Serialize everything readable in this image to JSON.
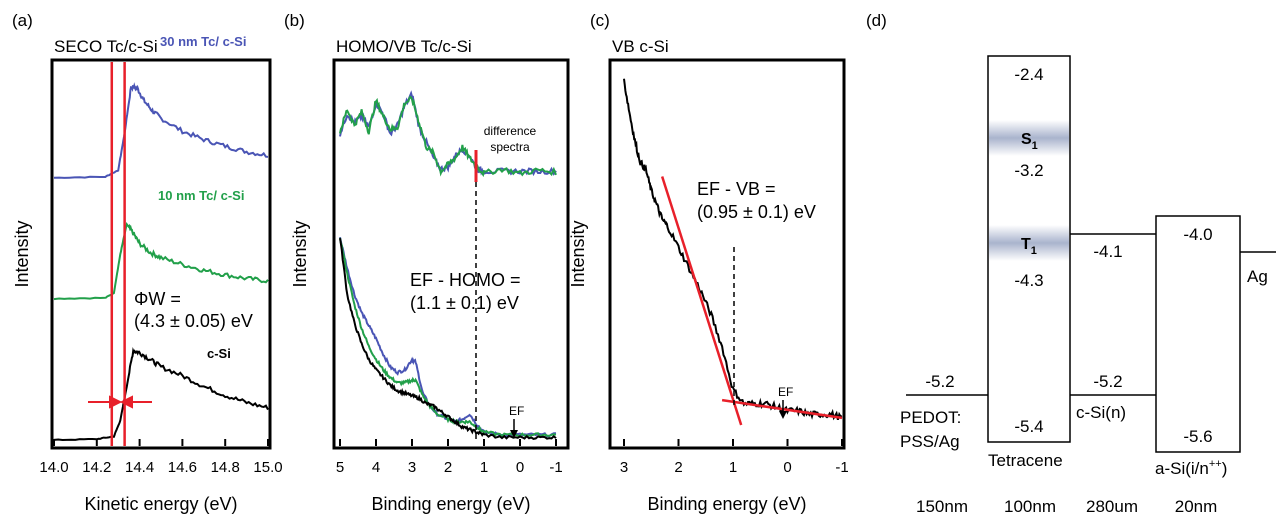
{
  "figure": {
    "colors": {
      "blue": "#4a55b5",
      "green": "#22a04a",
      "black": "#000000",
      "red": "#e8202a",
      "band": "#9aa6c4"
    }
  },
  "chart_data": [
    {
      "panel_label": "(a)",
      "type": "line",
      "title": "SECO Tc/c-Si",
      "xlabel": "Kinetic energy (eV)",
      "ylabel": "Intensity",
      "xlim": [
        14.0,
        15.0
      ],
      "xticks": [
        "14.0",
        "14.2",
        "14.4",
        "14.6",
        "14.8",
        "15.0"
      ],
      "series": [
        {
          "name": "30 nm Tc/ c-Si",
          "color": "#4a55b5",
          "offset": 0.7,
          "scale": 0.25,
          "x": [
            14.0,
            14.24,
            14.3,
            14.33,
            14.36,
            14.39,
            14.42,
            14.46,
            14.5,
            14.6,
            14.7,
            14.8,
            14.9,
            15.0
          ],
          "y": [
            0.02,
            0.03,
            0.1,
            0.5,
            1.0,
            0.98,
            0.85,
            0.74,
            0.66,
            0.52,
            0.43,
            0.36,
            0.3,
            0.26
          ]
        },
        {
          "name": "10 nm Tc/ c-Si",
          "color": "#22a04a",
          "offset": 0.38,
          "scale": 0.2,
          "x": [
            14.0,
            14.24,
            14.28,
            14.31,
            14.34,
            14.37,
            14.4,
            14.45,
            14.5,
            14.6,
            14.7,
            14.8,
            14.9,
            15.0
          ],
          "y": [
            0.0,
            0.01,
            0.08,
            0.6,
            1.0,
            0.88,
            0.74,
            0.62,
            0.55,
            0.46,
            0.38,
            0.32,
            0.27,
            0.24
          ]
        },
        {
          "name": "c-Si",
          "color": "#000000",
          "offset": 0.0,
          "scale": 0.24,
          "x": [
            14.0,
            14.2,
            14.28,
            14.31,
            14.34,
            14.37,
            14.4,
            14.45,
            14.5,
            14.6,
            14.7,
            14.8,
            14.9,
            15.0
          ],
          "y": [
            0.0,
            0.01,
            0.04,
            0.22,
            0.6,
            1.0,
            0.98,
            0.9,
            0.82,
            0.72,
            0.6,
            0.5,
            0.42,
            0.36
          ]
        }
      ],
      "vlines": [
        14.27,
        14.33
      ],
      "annotation_lines": [
        "ΦW =",
        "(4.3 ± 0.05) eV"
      ]
    },
    {
      "panel_label": "(b)",
      "type": "line",
      "title": "HOMO/VB Tc/c-Si",
      "xlabel": "Binding energy (eV)",
      "ylabel": "Intensity",
      "xlim": [
        5,
        -1
      ],
      "xticks": [
        "5",
        "4",
        "3",
        "2",
        "1",
        "0",
        "-1"
      ],
      "difference_label_lines": [
        "difference",
        "spectra"
      ],
      "series": [
        {
          "name": "blue",
          "color": "#4a55b5",
          "region": "lower",
          "x": [
            5.0,
            4.8,
            4.6,
            4.4,
            4.2,
            4.0,
            3.8,
            3.6,
            3.4,
            3.2,
            3.0,
            2.9,
            2.7,
            2.5,
            2.3,
            2.0,
            1.8,
            1.6,
            1.4,
            1.2,
            1.0,
            0.5,
            0.0,
            -0.5,
            -1.0
          ],
          "y": [
            0.78,
            0.66,
            0.56,
            0.49,
            0.44,
            0.39,
            0.33,
            0.28,
            0.26,
            0.27,
            0.31,
            0.3,
            0.18,
            0.13,
            0.1,
            0.08,
            0.07,
            0.08,
            0.1,
            0.06,
            0.03,
            0.02,
            0.02,
            0.02,
            0.02
          ]
        },
        {
          "name": "green",
          "color": "#22a04a",
          "region": "lower",
          "x": [
            5.0,
            4.8,
            4.6,
            4.4,
            4.2,
            4.0,
            3.8,
            3.6,
            3.4,
            3.2,
            3.0,
            2.9,
            2.7,
            2.5,
            2.3,
            2.0,
            1.8,
            1.6,
            1.4,
            1.2,
            1.0,
            0.5,
            0.0,
            -0.5,
            -1.0
          ],
          "y": [
            0.78,
            0.64,
            0.52,
            0.43,
            0.36,
            0.31,
            0.27,
            0.24,
            0.22,
            0.22,
            0.23,
            0.23,
            0.17,
            0.13,
            0.1,
            0.08,
            0.07,
            0.07,
            0.07,
            0.05,
            0.03,
            0.02,
            0.02,
            0.02,
            0.02
          ]
        },
        {
          "name": "black",
          "color": "#000000",
          "region": "lower",
          "x": [
            5.0,
            4.8,
            4.6,
            4.4,
            4.2,
            4.0,
            3.8,
            3.6,
            3.4,
            3.2,
            3.0,
            2.8,
            2.6,
            2.4,
            2.2,
            2.0,
            1.8,
            1.6,
            1.4,
            1.2,
            1.0,
            0.5,
            0.0,
            -0.5,
            -1.0
          ],
          "y": [
            0.78,
            0.56,
            0.45,
            0.37,
            0.31,
            0.27,
            0.24,
            0.21,
            0.19,
            0.18,
            0.17,
            0.16,
            0.14,
            0.13,
            0.11,
            0.09,
            0.07,
            0.05,
            0.04,
            0.03,
            0.02,
            0.01,
            0.01,
            0.01,
            0.01
          ]
        },
        {
          "name": "blue difference",
          "color": "#4a55b5",
          "region": "upper",
          "x": [
            5.0,
            4.8,
            4.6,
            4.4,
            4.2,
            4.0,
            3.8,
            3.6,
            3.4,
            3.2,
            3.0,
            2.8,
            2.6,
            2.4,
            2.2,
            2.0,
            1.8,
            1.6,
            1.4,
            1.2,
            1.0,
            0.5,
            0.0,
            -0.5,
            -1.0
          ],
          "y": [
            0.42,
            0.6,
            0.52,
            0.58,
            0.48,
            0.7,
            0.6,
            0.42,
            0.5,
            0.68,
            0.78,
            0.48,
            0.34,
            0.2,
            0.1,
            0.12,
            0.22,
            0.28,
            0.22,
            0.1,
            0.08,
            0.08,
            0.08,
            0.08,
            0.08
          ]
        },
        {
          "name": "green difference",
          "color": "#22a04a",
          "region": "upper",
          "x": [
            5.0,
            4.8,
            4.6,
            4.4,
            4.2,
            4.0,
            3.8,
            3.6,
            3.4,
            3.2,
            3.0,
            2.8,
            2.6,
            2.4,
            2.2,
            2.0,
            1.8,
            1.6,
            1.4,
            1.2,
            1.0,
            0.5,
            0.0,
            -0.5,
            -1.0
          ],
          "y": [
            0.44,
            0.64,
            0.5,
            0.62,
            0.44,
            0.72,
            0.58,
            0.46,
            0.48,
            0.7,
            0.74,
            0.52,
            0.3,
            0.24,
            0.08,
            0.14,
            0.2,
            0.3,
            0.2,
            0.12,
            0.06,
            0.1,
            0.06,
            0.09,
            0.07
          ]
        }
      ],
      "vline_x": 1.0,
      "annotation_lines": [
        "EF - HOMO =",
        "(1.1 ± 0.1) eV"
      ],
      "ef_label": "EF",
      "ef_x": 0.0
    },
    {
      "panel_label": "(c)",
      "type": "line",
      "title": "VB  c-Si",
      "xlabel": "Binding energy (eV)",
      "ylabel": "Intensity",
      "xlim": [
        3,
        -1
      ],
      "xticks": [
        "3",
        "2",
        "1",
        "0",
        "-1"
      ],
      "series": [
        {
          "name": "c-Si VB",
          "color": "#000000",
          "x": [
            3.0,
            2.9,
            2.8,
            2.7,
            2.6,
            2.5,
            2.4,
            2.3,
            2.2,
            2.0,
            1.8,
            1.6,
            1.4,
            1.2,
            1.0,
            0.8,
            0.6,
            0.4,
            0.2,
            0.0,
            -0.2,
            -0.4,
            -0.6,
            -0.8,
            -1.0
          ],
          "y": [
            0.97,
            0.88,
            0.8,
            0.74,
            0.72,
            0.66,
            0.62,
            0.58,
            0.56,
            0.5,
            0.44,
            0.38,
            0.31,
            0.22,
            0.1,
            0.06,
            0.06,
            0.06,
            0.05,
            0.04,
            0.04,
            0.03,
            0.03,
            0.03,
            0.02
          ]
        }
      ],
      "fit_lines": [
        {
          "x": [
            2.3,
            0.85
          ],
          "y": [
            0.7,
            0.0
          ]
        },
        {
          "x": [
            1.2,
            -1.0
          ],
          "y": [
            0.07,
            0.02
          ]
        }
      ],
      "vline_x": 0.95,
      "annotation_lines": [
        "EF - VB =",
        "(0.95 ± 0.1) eV"
      ],
      "ef_label": "EF",
      "ef_x": 0.0
    },
    {
      "panel_label": "(d)",
      "type": "diagram",
      "units": "eV",
      "layers": [
        {
          "name_lines": [
            "PEDOT:",
            "PSS/Ag"
          ],
          "thickness": "150nm",
          "levels": [
            {
              "label": "-5.2",
              "value": -5.2
            }
          ]
        },
        {
          "name_lines": [
            "Tetracene"
          ],
          "thickness": "100nm",
          "top": -2.4,
          "bottom": -5.4,
          "levels": [
            {
              "label": "-2.4",
              "value": -2.4
            },
            {
              "label": "-3.2",
              "value": -3.2
            },
            {
              "label": "-4.3",
              "value": -4.3
            },
            {
              "label": "-5.4",
              "value": -5.4
            }
          ],
          "states": [
            {
              "label": "S",
              "sub": "1",
              "value": -2.95
            },
            {
              "label": "T",
              "sub": "1",
              "value": -4.05
            }
          ]
        },
        {
          "name_lines": [
            "c-Si(n)"
          ],
          "thickness": "280um",
          "levels": [
            {
              "label": "-4.1",
              "value": -4.1
            },
            {
              "label": "-5.2",
              "value": -5.2
            }
          ]
        },
        {
          "name_lines": [
            "a-Si(i/n",
            "++",
            ")"
          ],
          "thickness": "20nm",
          "top": -4.0,
          "bottom": -5.6,
          "levels": [
            {
              "label": "-4.0",
              "value": -4.0
            },
            {
              "label": "-5.6",
              "value": -5.6
            }
          ]
        },
        {
          "name_lines": [
            "Ag"
          ],
          "thickness": "",
          "levels": [
            {
              "value": -4.05
            }
          ]
        }
      ]
    }
  ]
}
